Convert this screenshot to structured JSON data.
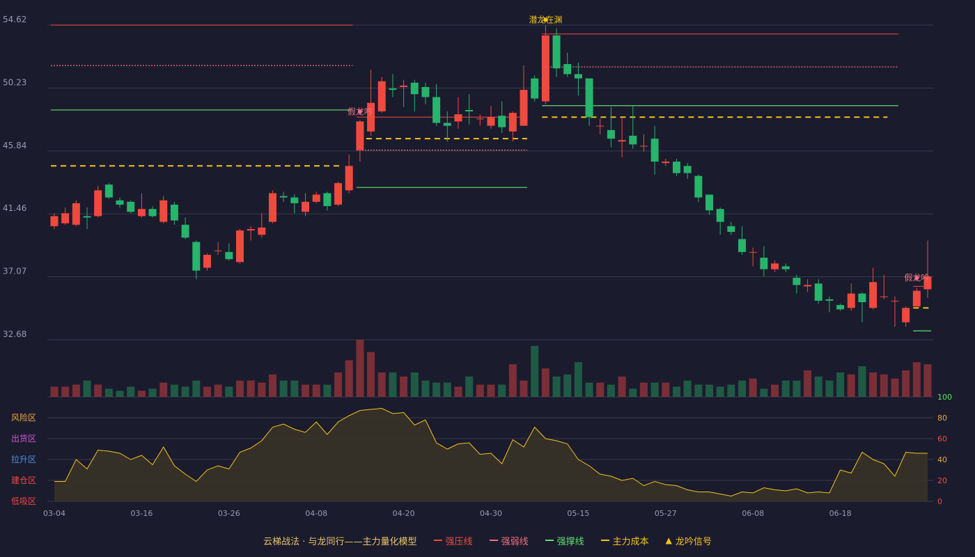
{
  "colors": {
    "background": "#1b1b2e",
    "grid": "#3a3a4e",
    "axis_text": "#9a9ab0",
    "up": "#ef4a3e",
    "down": "#27b46b",
    "vol_up": "#7a2e36",
    "vol_down": "#1f5a44",
    "resistance": "#c94040",
    "weak": "#f07080",
    "support": "#5ee06a",
    "cost": "#f3c419",
    "signal": "#f3c419",
    "osc_line": "#f3c419",
    "osc_fill": "#3a3426"
  },
  "legend": {
    "title": "云梯战法 · 与龙同行——主力量化模型",
    "items": [
      {
        "label": "强压线",
        "color": "#ef4a3e",
        "style": "solid",
        "icon": "line-icon"
      },
      {
        "label": "强弱线",
        "color": "#f07080",
        "style": "dashed",
        "icon": "dashed-line-icon"
      },
      {
        "label": "强撑线",
        "color": "#5ee06a",
        "style": "solid",
        "icon": "line-icon"
      },
      {
        "label": "主力成本",
        "color": "#f3c419",
        "style": "dashed",
        "icon": "dashed-line-icon"
      },
      {
        "label": "龙吟信号",
        "color": "#f3c419",
        "style": "triangle",
        "icon": "triangle-icon"
      }
    ]
  },
  "chart_data": {
    "type": "candlestick",
    "x_tick_labels": [
      "03-04",
      "03-16",
      "03-26",
      "04-08",
      "04-20",
      "04-30",
      "05-15",
      "05-27",
      "06-08",
      "06-18"
    ],
    "x_tick_index": [
      0,
      8,
      16,
      24,
      32,
      40,
      48,
      56,
      64,
      72
    ],
    "price_axis": {
      "ticks": [
        32.68,
        37.07,
        41.46,
        45.84,
        50.23,
        54.62
      ],
      "range": [
        32.68,
        54.62
      ]
    },
    "ohlc": [
      [
        40.6,
        41.3,
        40.4,
        41.5
      ],
      [
        40.8,
        41.5,
        40.7,
        41.9
      ],
      [
        40.7,
        42.2,
        40.6,
        42.4
      ],
      [
        41.3,
        41.2,
        40.4,
        41.9
      ],
      [
        41.3,
        43.1,
        41.2,
        43.4
      ],
      [
        43.5,
        42.6,
        42.5,
        43.6
      ],
      [
        42.4,
        42.1,
        41.9,
        42.6
      ],
      [
        42.3,
        41.6,
        41.5,
        42.4
      ],
      [
        41.3,
        41.8,
        41.2,
        42.9
      ],
      [
        41.8,
        41.3,
        41.2,
        42.0
      ],
      [
        40.9,
        42.4,
        40.8,
        42.7
      ],
      [
        42.1,
        41.0,
        40.7,
        42.3
      ],
      [
        40.7,
        39.8,
        39.7,
        41.2
      ],
      [
        39.5,
        37.5,
        36.9,
        39.6
      ],
      [
        37.7,
        38.6,
        37.5,
        38.7
      ],
      [
        38.9,
        38.9,
        38.6,
        39.5
      ],
      [
        38.8,
        38.3,
        38.2,
        39.4
      ],
      [
        38.1,
        40.3,
        38.0,
        40.4
      ],
      [
        40.3,
        40.4,
        39.6,
        40.6
      ],
      [
        40.0,
        40.5,
        39.8,
        41.5
      ],
      [
        40.9,
        42.9,
        40.8,
        43.1
      ],
      [
        42.7,
        42.6,
        42.3,
        43.0
      ],
      [
        42.6,
        42.2,
        41.5,
        42.8
      ],
      [
        41.6,
        42.3,
        41.3,
        42.9
      ],
      [
        42.3,
        42.8,
        42.2,
        43.0
      ],
      [
        42.9,
        42.0,
        41.7,
        43.0
      ],
      [
        42.1,
        43.6,
        42.0,
        43.7
      ],
      [
        43.1,
        44.8,
        42.9,
        45.6
      ],
      [
        45.9,
        47.9,
        45.1,
        48.0
      ],
      [
        47.2,
        49.2,
        46.9,
        51.5
      ],
      [
        48.6,
        50.7,
        48.5,
        51.0
      ],
      [
        50.2,
        50.1,
        49.6,
        51.2
      ],
      [
        50.3,
        50.4,
        48.9,
        50.8
      ],
      [
        50.6,
        49.8,
        48.6,
        50.8
      ],
      [
        50.3,
        49.6,
        49.1,
        50.6
      ],
      [
        49.6,
        47.8,
        47.6,
        50.5
      ],
      [
        47.8,
        47.6,
        46.5,
        48.6
      ],
      [
        47.9,
        48.4,
        47.4,
        49.6
      ],
      [
        48.7,
        48.6,
        47.7,
        49.8
      ],
      [
        48.1,
        48.1,
        47.6,
        48.4
      ],
      [
        47.6,
        48.2,
        47.4,
        49.0
      ],
      [
        48.3,
        47.5,
        47.1,
        49.3
      ],
      [
        47.2,
        48.5,
        46.5,
        48.6
      ],
      [
        47.6,
        50.1,
        47.6,
        51.8
      ],
      [
        50.9,
        49.5,
        49.3,
        51.1
      ],
      [
        49.3,
        53.9,
        49.1,
        54.6
      ],
      [
        53.9,
        51.6,
        51.0,
        54.4
      ],
      [
        51.9,
        51.2,
        51.0,
        52.7
      ],
      [
        51.2,
        50.9,
        49.7,
        52.0
      ],
      [
        50.9,
        48.2,
        47.6,
        50.9
      ],
      [
        47.6,
        47.6,
        47.0,
        48.1
      ],
      [
        47.3,
        46.7,
        46.1,
        48.9
      ],
      [
        46.5,
        46.6,
        45.4,
        48.2
      ],
      [
        46.9,
        46.3,
        46.0,
        49.0
      ],
      [
        46.2,
        46.2,
        45.8,
        47.0
      ],
      [
        46.7,
        45.1,
        44.2,
        47.6
      ],
      [
        45.0,
        45.1,
        44.8,
        45.3
      ],
      [
        45.1,
        44.3,
        44.1,
        45.3
      ],
      [
        44.8,
        44.3,
        43.9,
        45.0
      ],
      [
        44.1,
        42.6,
        42.3,
        44.2
      ],
      [
        42.8,
        41.7,
        41.4,
        42.8
      ],
      [
        41.8,
        40.9,
        40.0,
        41.9
      ],
      [
        40.6,
        40.2,
        40.0,
        40.9
      ],
      [
        39.7,
        38.8,
        38.6,
        40.6
      ],
      [
        38.8,
        38.8,
        37.8,
        39.1
      ],
      [
        38.4,
        37.6,
        37.1,
        39.2
      ],
      [
        37.6,
        38.0,
        37.4,
        38.2
      ],
      [
        37.8,
        37.6,
        37.4,
        38.0
      ],
      [
        37.0,
        36.5,
        35.9,
        37.2
      ],
      [
        36.4,
        36.5,
        36.0,
        36.9
      ],
      [
        36.6,
        35.4,
        35.2,
        36.9
      ],
      [
        35.5,
        35.4,
        34.6,
        35.7
      ],
      [
        35.1,
        34.8,
        34.7,
        35.2
      ],
      [
        34.9,
        35.9,
        34.7,
        36.6
      ],
      [
        35.9,
        35.3,
        33.9,
        36.0
      ],
      [
        34.9,
        36.7,
        34.8,
        37.7
      ],
      [
        35.7,
        35.7,
        35.5,
        37.2
      ],
      [
        35.4,
        35.4,
        33.6,
        35.7
      ],
      [
        33.9,
        34.9,
        33.6,
        35.0
      ],
      [
        35.0,
        36.1,
        35.0,
        36.3
      ],
      [
        36.2,
        37.1,
        35.6,
        39.6
      ]
    ],
    "volume": [
      5,
      5,
      6,
      8,
      6,
      4,
      3,
      5,
      3,
      4,
      7,
      6,
      5,
      8,
      5,
      6,
      5,
      8,
      8,
      7,
      11,
      8,
      8,
      6,
      6,
      6,
      12,
      18,
      28,
      22,
      12,
      12,
      10,
      12,
      8,
      7,
      7,
      5,
      10,
      6,
      6,
      6,
      16,
      8,
      25,
      14,
      10,
      11,
      17,
      7,
      7,
      6,
      10,
      4,
      7,
      7,
      7,
      5,
      8,
      6,
      6,
      5,
      6,
      8,
      9,
      4,
      6,
      8,
      8,
      13,
      10,
      8,
      12,
      11,
      15,
      12,
      11,
      9,
      13,
      17,
      16
    ],
    "oscillator": {
      "zones": [
        "低吸区",
        "建仓区",
        "拉升区",
        "出货区",
        "风险区"
      ],
      "zone_colors": [
        "#ef4a3e",
        "#ef4a3e",
        "#4f8fe0",
        "#c95ad1",
        "#f3a63a"
      ],
      "axis_ticks": [
        0,
        20,
        40,
        60,
        80,
        100
      ],
      "axis_tick_colors": [
        "#ef4a3e",
        "#ef4a3e",
        "#f3a63a",
        "#ef4a3e",
        "#f3a63a",
        "#5ee06a"
      ],
      "values": [
        19,
        19,
        40,
        31,
        49,
        48,
        46,
        40,
        44,
        35,
        52,
        34,
        26,
        19,
        30,
        34,
        31,
        47,
        51,
        58,
        71,
        74,
        69,
        66,
        76,
        64,
        76,
        82,
        87,
        88,
        89,
        84,
        85,
        73,
        78,
        56,
        50,
        55,
        56,
        45,
        46,
        36,
        59,
        52,
        71,
        60,
        58,
        55,
        40,
        34,
        26,
        24,
        20,
        22,
        15,
        19,
        16,
        15,
        11,
        9,
        9,
        7,
        5,
        9,
        8,
        13,
        11,
        10,
        12,
        8,
        9,
        8,
        30,
        27,
        47,
        40,
        36,
        24,
        47,
        46,
        46
      ]
    },
    "levels": [
      {
        "kind": "resistance",
        "from": 0,
        "to": 27,
        "price": 54.62,
        "style": "solid"
      },
      {
        "kind": "weak",
        "from": 0,
        "to": 27,
        "price": 51.8,
        "style": "dotted"
      },
      {
        "kind": "support",
        "from": 0,
        "to": 27,
        "price": 48.7,
        "style": "solid"
      },
      {
        "kind": "cost",
        "from": 0,
        "to": 26,
        "price": 44.8,
        "style": "dashed"
      },
      {
        "kind": "resistance",
        "from": 28,
        "to": 43,
        "price": 48.2,
        "style": "solid"
      },
      {
        "kind": "weak",
        "from": 28,
        "to": 43,
        "price": 45.9,
        "style": "dotted"
      },
      {
        "kind": "support",
        "from": 28,
        "to": 43,
        "price": 43.3,
        "style": "solid"
      },
      {
        "kind": "cost",
        "from": 28,
        "to": 43,
        "price": 46.7,
        "style": "dashed"
      },
      {
        "kind": "resistance",
        "from": 45,
        "to": 77,
        "price": 54.0,
        "style": "solid"
      },
      {
        "kind": "weak",
        "from": 45,
        "to": 77,
        "price": 51.7,
        "style": "dotted"
      },
      {
        "kind": "support",
        "from": 45,
        "to": 77,
        "price": 49.0,
        "style": "solid"
      },
      {
        "kind": "cost",
        "from": 45,
        "to": 76,
        "price": 48.2,
        "style": "dashed"
      },
      {
        "kind": "resistance",
        "from": 79,
        "to": 80,
        "price": 36.4,
        "style": "solid"
      },
      {
        "kind": "support",
        "from": 79,
        "to": 80,
        "price": 33.3,
        "style": "solid"
      },
      {
        "kind": "cost",
        "from": 79,
        "to": 80,
        "price": 34.9,
        "style": "dashed"
      }
    ],
    "signals": [
      {
        "index": 28,
        "text": "假龙吟",
        "color": "#f07080",
        "price": 48.2
      },
      {
        "index": 45,
        "text": "潜龙在渊",
        "color": "#f3c419",
        "price": 54.6
      },
      {
        "index": 79,
        "text": "假龙吟",
        "color": "#f07080",
        "price": 36.6
      }
    ]
  }
}
